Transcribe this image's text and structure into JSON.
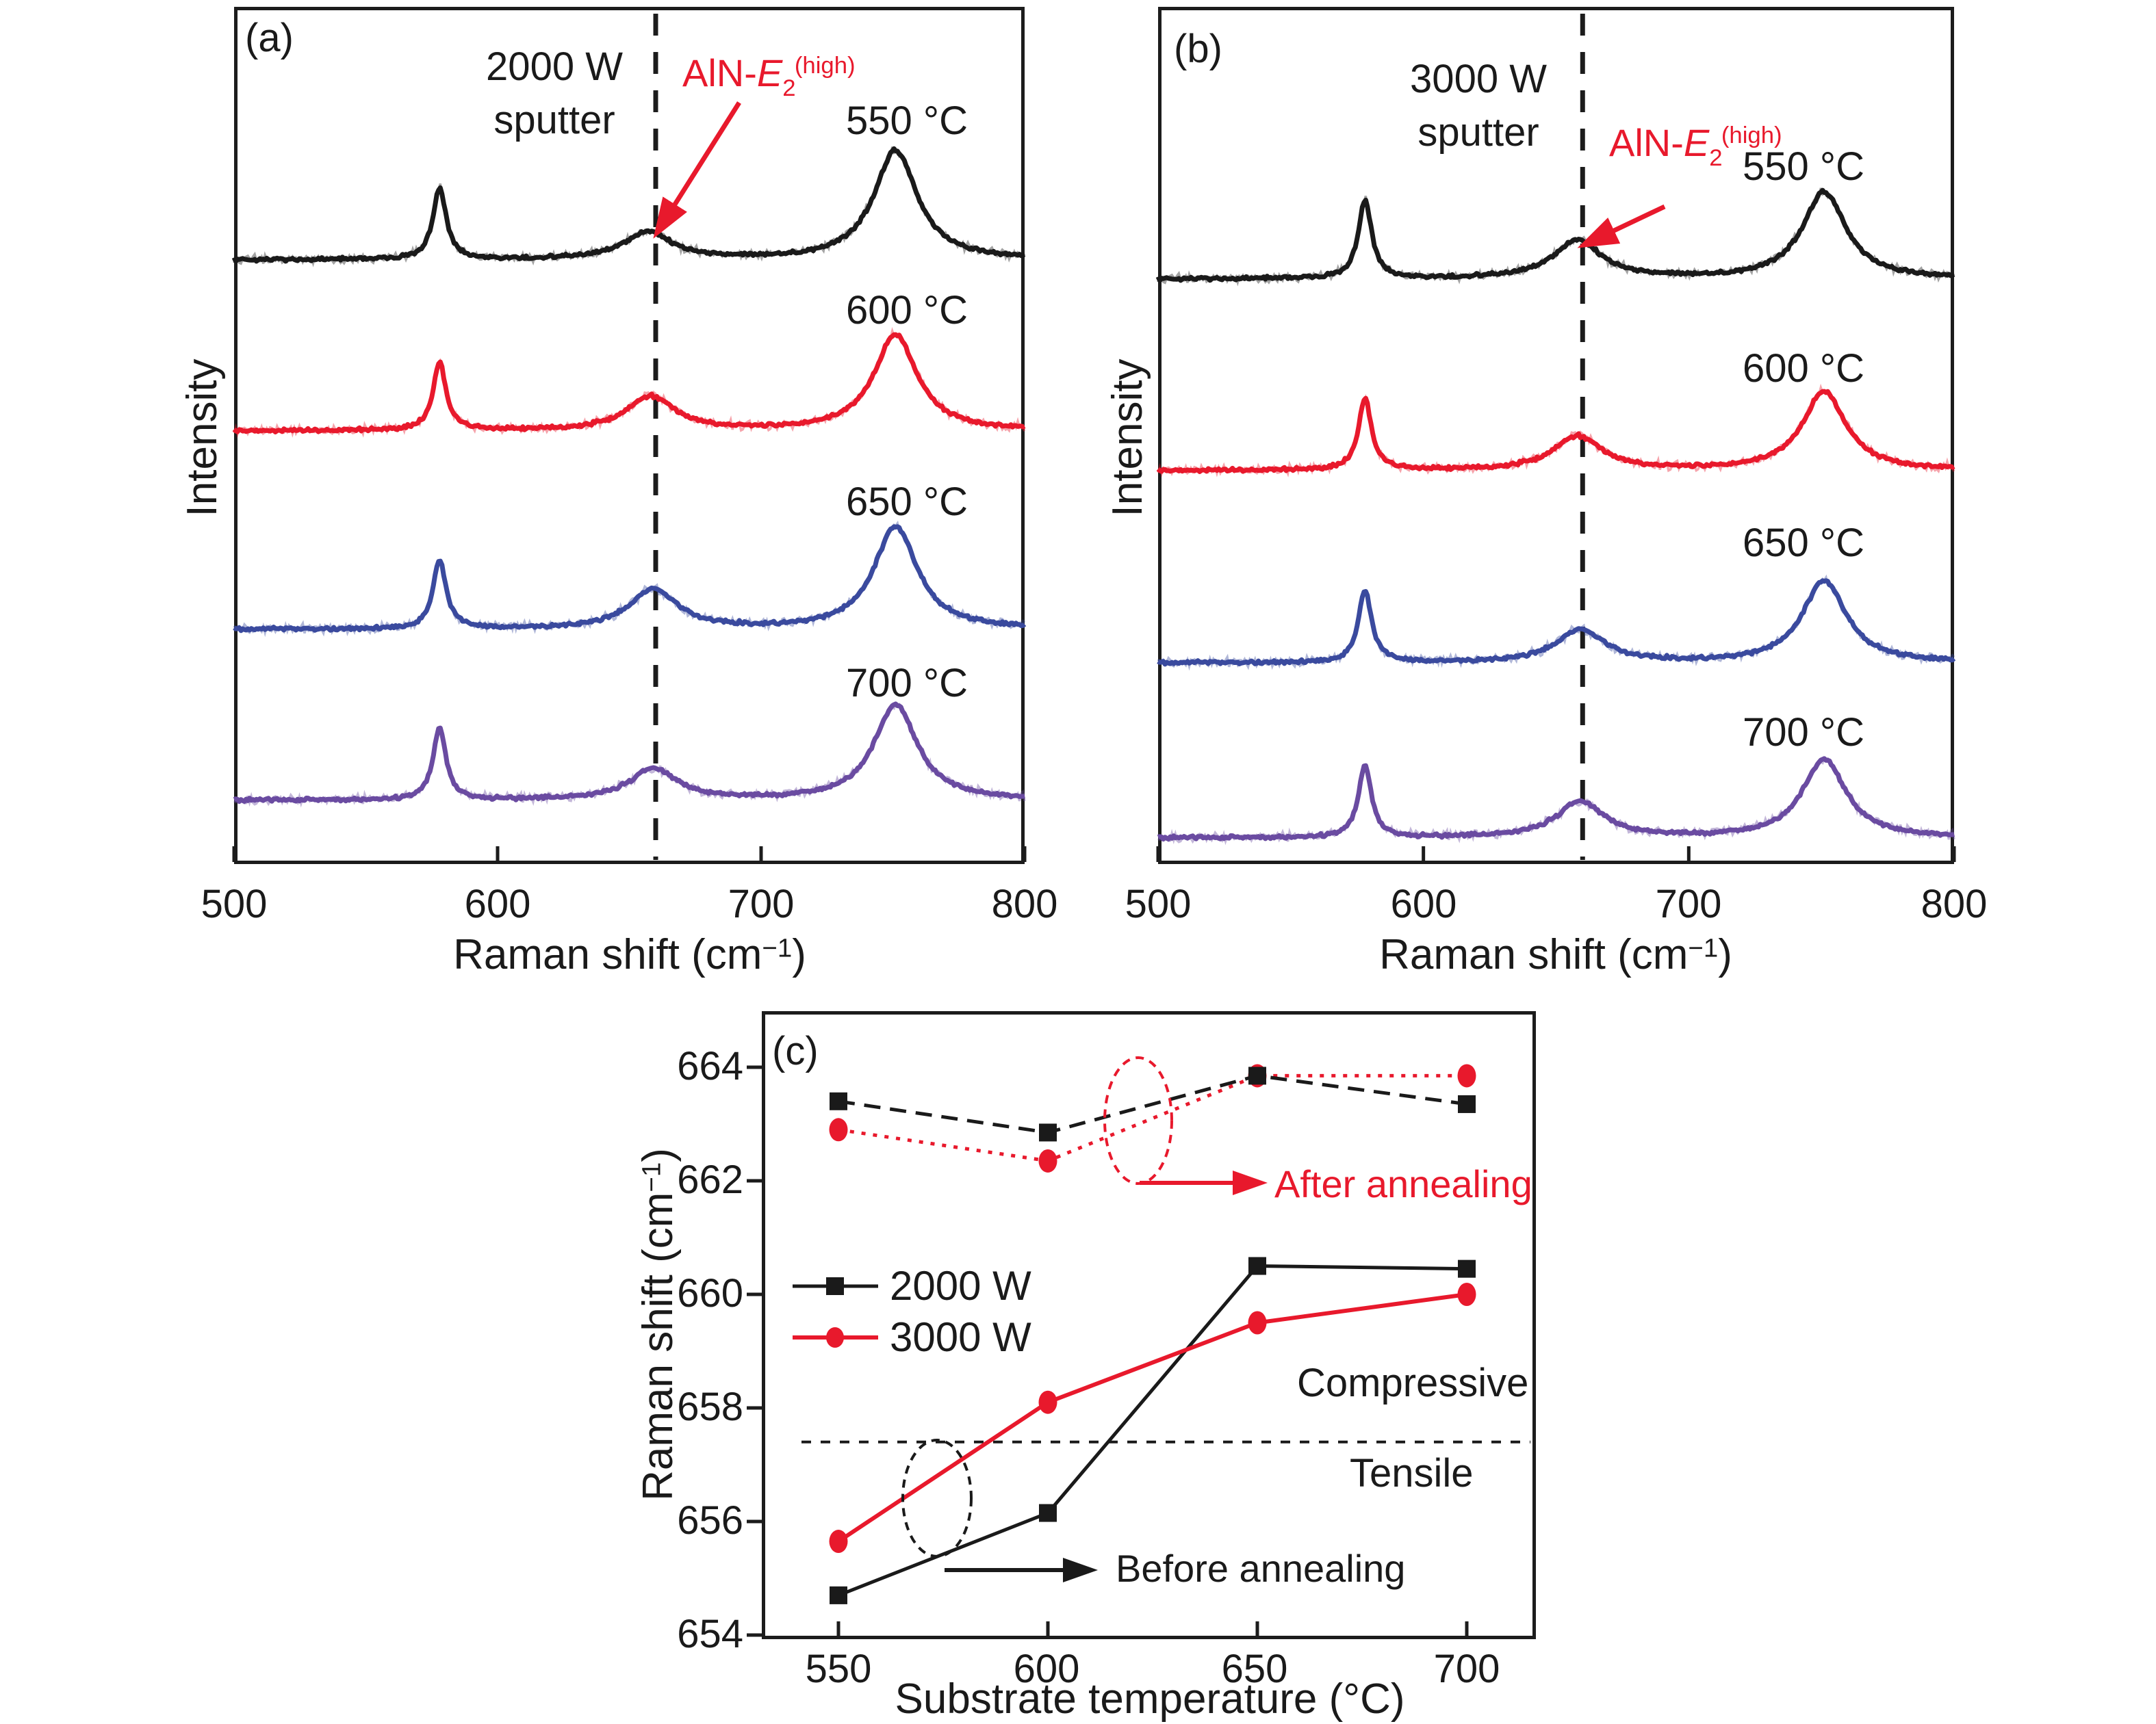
{
  "figure": {
    "panel_a": {
      "tag": "(a)",
      "condition": [
        "2000 W",
        "sputter"
      ],
      "peak_label": {
        "pre": "AlN-",
        "sym": "E",
        "sub": "2",
        "sup": "(high)"
      },
      "curve_labels": [
        "550 °C",
        "600 °C",
        "650 °C",
        "700 °C"
      ],
      "xticks": [
        "500",
        "600",
        "700",
        "800"
      ],
      "xlabel": {
        "pre": "Raman shift (cm",
        "sup": "−1",
        "post": ")"
      },
      "ylabel": "Intensity"
    },
    "panel_b": {
      "tag": "(b)",
      "condition": [
        "3000 W",
        "sputter"
      ],
      "peak_label": {
        "pre": "AlN-",
        "sym": "E",
        "sub": "2",
        "sup": "(high)"
      },
      "curve_labels": [
        "550 °C",
        "600 °C",
        "650 °C",
        "700 °C"
      ],
      "xticks": [
        "500",
        "600",
        "700",
        "800"
      ],
      "xlabel": {
        "pre": "Raman shift (cm",
        "sup": "−1",
        "post": ")"
      },
      "ylabel": "Intensity"
    },
    "panel_c": {
      "tag": "(c)",
      "yticks": [
        "664",
        "662",
        "660",
        "658",
        "656",
        "654"
      ],
      "xticks": [
        "550",
        "600",
        "650",
        "700"
      ],
      "xlabel": "Substrate temperature (°C)",
      "ylabel": {
        "pre": "Raman shift (cm",
        "sup": "−1",
        "post": ")"
      },
      "legend": [
        "2000 W",
        "3000 W"
      ],
      "after_label": "After annealing",
      "before_label": "Before annealing",
      "compressive_label": "Compressive",
      "tensile_label": "Tensile"
    },
    "colors": {
      "black": "#1a1a1a",
      "red": "#e8192c",
      "blue": "#3a4a9e",
      "purple": "#6a4ba1"
    }
  },
  "chart_data": [
    {
      "type": "line",
      "panel": "a",
      "title": "2000 W sputter",
      "xlabel": "Raman shift (cm−1)",
      "ylabel": "Intensity",
      "xlim": [
        500,
        800
      ],
      "xticks": [
        500,
        600,
        700,
        800
      ],
      "guide_line_x": 660,
      "guide_label": "AlN-E2(high)",
      "note": "stacked Raman spectra, arbitrary intensity units, peaks: Si ~578, AlN E2(high) ~657-660, Si ~750",
      "series": [
        {
          "name": "550 °C",
          "color": "#1a1a1a",
          "peaks": [
            {
              "c": 578,
              "h": 105,
              "w": 3
            },
            {
              "c": 657,
              "h": 40,
              "w": 11
            },
            {
              "c": 751,
              "h": 160,
              "w": 10
            }
          ]
        },
        {
          "name": "600 °C",
          "color": "#e8192c",
          "peaks": [
            {
              "c": 578,
              "h": 100,
              "w": 3
            },
            {
              "c": 658,
              "h": 50,
              "w": 11
            },
            {
              "c": 751,
              "h": 140,
              "w": 10
            }
          ]
        },
        {
          "name": "650 °C",
          "color": "#3a4a9e",
          "peaks": [
            {
              "c": 578,
              "h": 100,
              "w": 3
            },
            {
              "c": 659,
              "h": 58,
              "w": 11
            },
            {
              "c": 751,
              "h": 150,
              "w": 10
            }
          ]
        },
        {
          "name": "700 °C",
          "color": "#6a4ba1",
          "peaks": [
            {
              "c": 578,
              "h": 105,
              "w": 3
            },
            {
              "c": 659,
              "h": 45,
              "w": 11
            },
            {
              "c": 751,
              "h": 140,
              "w": 10
            }
          ]
        }
      ]
    },
    {
      "type": "line",
      "panel": "b",
      "title": "3000 W sputter",
      "xlabel": "Raman shift (cm−1)",
      "ylabel": "Intensity",
      "xlim": [
        500,
        800
      ],
      "xticks": [
        500,
        600,
        700,
        800
      ],
      "guide_line_x": 660,
      "guide_label": "AlN-E2(high)",
      "series": [
        {
          "name": "550 °C",
          "color": "#1a1a1a",
          "peaks": [
            {
              "c": 578,
              "h": 115,
              "w": 3
            },
            {
              "c": 658,
              "h": 56,
              "w": 11
            },
            {
              "c": 751,
              "h": 127,
              "w": 10
            }
          ]
        },
        {
          "name": "600 °C",
          "color": "#e8192c",
          "peaks": [
            {
              "c": 578,
              "h": 105,
              "w": 3
            },
            {
              "c": 658,
              "h": 50,
              "w": 11
            },
            {
              "c": 751,
              "h": 115,
              "w": 10
            }
          ]
        },
        {
          "name": "650 °C",
          "color": "#3a4a9e",
          "peaks": [
            {
              "c": 659,
              "h": 48,
              "w": 11
            },
            {
              "c": 578,
              "h": 105,
              "w": 3
            },
            {
              "c": 751,
              "h": 120,
              "w": 10
            }
          ]
        },
        {
          "name": "700 °C",
          "color": "#6a4ba1",
          "peaks": [
            {
              "c": 659,
              "h": 52,
              "w": 11
            },
            {
              "c": 578,
              "h": 105,
              "w": 3
            },
            {
              "c": 751,
              "h": 115,
              "w": 10
            }
          ]
        }
      ]
    },
    {
      "type": "line",
      "panel": "c",
      "xlabel": "Substrate temperature (°C)",
      "ylabel": "Raman shift (cm−1)",
      "x": [
        550,
        600,
        650,
        700
      ],
      "ylim": [
        654,
        664.8
      ],
      "yticks": [
        664,
        662,
        660,
        658,
        656,
        654
      ],
      "stress_boundary_y": 657.4,
      "regions": {
        "above": "Compressive",
        "below": "Tensile"
      },
      "legend_position": "center-left",
      "series": [
        {
          "name": "2000 W before annealing",
          "color": "#1a1a1a",
          "style": "solid",
          "marker": "square",
          "values": [
            654.7,
            656.15,
            660.5,
            660.45
          ]
        },
        {
          "name": "3000 W before annealing",
          "color": "#e8192c",
          "style": "solid",
          "marker": "circle",
          "values": [
            655.65,
            658.1,
            659.5,
            660.0
          ]
        },
        {
          "name": "3000 W after annealing",
          "color": "#e8192c",
          "style": "dotted",
          "marker": "circle",
          "values": [
            662.9,
            662.35,
            663.85,
            663.85
          ]
        },
        {
          "name": "2000 W after annealing",
          "color": "#1a1a1a",
          "style": "dashed",
          "marker": "square",
          "values": [
            663.4,
            662.85,
            663.85,
            663.35
          ]
        }
      ]
    }
  ]
}
